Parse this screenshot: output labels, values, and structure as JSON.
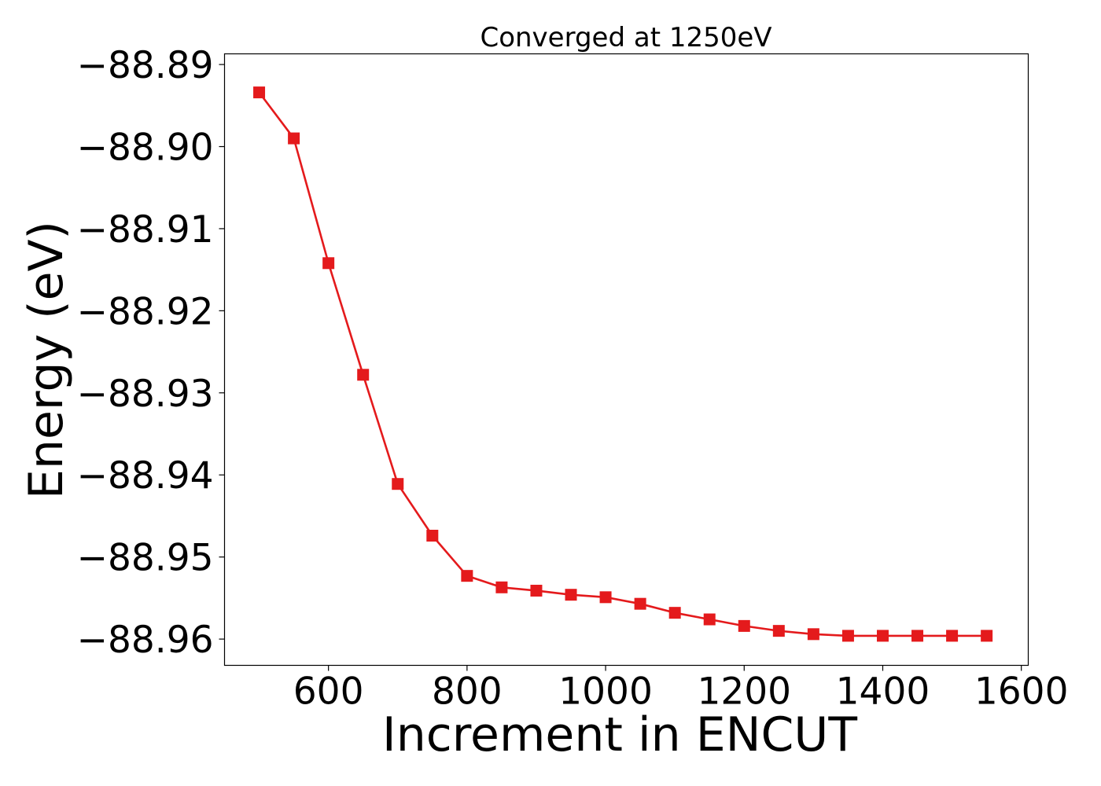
{
  "chart_data": {
    "type": "line",
    "title": "Converged at 1250eV",
    "xlabel": "Increment in ENCUT",
    "ylabel": "Energy (eV)",
    "xlim": [
      450,
      1610
    ],
    "ylim": [
      -88.9632,
      -88.8887
    ],
    "x_ticks": [
      600,
      800,
      1000,
      1200,
      1400,
      1600
    ],
    "x_tick_labels": [
      "600",
      "800",
      "1000",
      "1200",
      "1400",
      "1600"
    ],
    "y_ticks": [
      -88.89,
      -88.9,
      -88.91,
      -88.92,
      -88.93,
      -88.94,
      -88.95,
      -88.96
    ],
    "y_tick_labels": [
      "−88.89",
      "−88.90",
      "−88.91",
      "−88.92",
      "−88.93",
      "−88.94",
      "−88.95",
      "−88.96"
    ],
    "grid": false,
    "series": [
      {
        "color": "#e41a1c",
        "marker": "square",
        "x": [
          500,
          550,
          600,
          650,
          700,
          750,
          800,
          850,
          900,
          950,
          1000,
          1050,
          1100,
          1150,
          1200,
          1250,
          1300,
          1350,
          1400,
          1450,
          1500,
          1550
        ],
        "y": [
          -88.8934,
          -88.899,
          -88.9142,
          -88.9278,
          -88.9411,
          -88.9474,
          -88.9523,
          -88.9537,
          -88.9541,
          -88.9546,
          -88.9549,
          -88.9557,
          -88.9568,
          -88.9576,
          -88.9584,
          -88.959,
          -88.9594,
          -88.9596,
          -88.9596,
          -88.9596,
          -88.9596,
          -88.9596
        ]
      }
    ]
  }
}
